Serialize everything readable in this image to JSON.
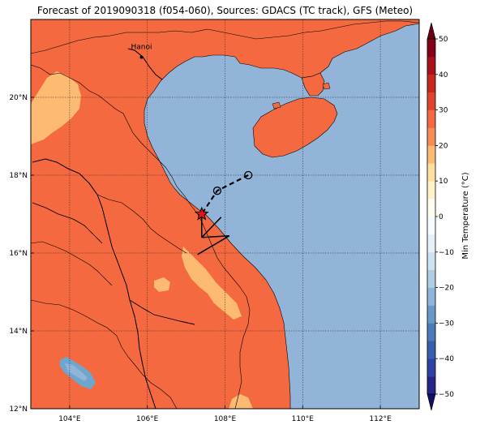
{
  "title": "Forecast of 2019090318 (f054-060), Sources: GDACS (TC track), GFS (Meteo)",
  "map": {
    "lon_range": [
      103,
      113
    ],
    "lat_range": [
      12,
      22
    ],
    "lon_ticks": [
      {
        "value": 104,
        "label": "104°E"
      },
      {
        "value": 106,
        "label": "106°E"
      },
      {
        "value": 108,
        "label": "108°E"
      },
      {
        "value": 110,
        "label": "110°E"
      },
      {
        "value": 112,
        "label": "112°E"
      }
    ],
    "lat_ticks": [
      {
        "value": 12,
        "label": "12°N"
      },
      {
        "value": 14,
        "label": "14°N"
      },
      {
        "value": 16,
        "label": "16°N"
      },
      {
        "value": 18,
        "label": "18°N"
      },
      {
        "value": 20,
        "label": "20°N"
      }
    ],
    "city": {
      "name": "Hanoi",
      "lon": 105.85,
      "lat": 21.03
    },
    "colors": {
      "sea": "#92b4d8",
      "land": "#f4693f",
      "warm_land": "#fdba72",
      "cool_land": "#6ea6d0"
    }
  },
  "track": {
    "forecast_points": [
      {
        "lon": 108.6,
        "lat": 18.0
      },
      {
        "lon": 107.8,
        "lat": 17.6
      }
    ],
    "current_position": {
      "lon": 107.4,
      "lat": 17.0
    },
    "wind_barb": {
      "lon": 107.4,
      "lat": 16.4
    }
  },
  "colorbar": {
    "label": "Min Temperature (°C)",
    "ticks": [
      -50,
      -40,
      -30,
      -20,
      -10,
      0,
      10,
      20,
      30,
      40,
      50
    ],
    "bins": [
      {
        "from": -50,
        "to": -45,
        "color": "#26268a"
      },
      {
        "from": -45,
        "to": -40,
        "color": "#3040a8"
      },
      {
        "from": -40,
        "to": -35,
        "color": "#3a5eae"
      },
      {
        "from": -35,
        "to": -30,
        "color": "#4d7bba"
      },
      {
        "from": -30,
        "to": -25,
        "color": "#6a98c6"
      },
      {
        "from": -25,
        "to": -20,
        "color": "#92b4d8"
      },
      {
        "from": -20,
        "to": -15,
        "color": "#b0cde2"
      },
      {
        "from": -15,
        "to": -10,
        "color": "#cfe2ef"
      },
      {
        "from": -10,
        "to": -5,
        "color": "#e6f1f7"
      },
      {
        "from": -5,
        "to": 0,
        "color": "#f7fbfd"
      },
      {
        "from": 0,
        "to": 5,
        "color": "#fffdf0"
      },
      {
        "from": 5,
        "to": 10,
        "color": "#fff2c8"
      },
      {
        "from": 10,
        "to": 15,
        "color": "#fee0a0"
      },
      {
        "from": 15,
        "to": 20,
        "color": "#fdba72"
      },
      {
        "from": 20,
        "to": 25,
        "color": "#f88c55"
      },
      {
        "from": 25,
        "to": 30,
        "color": "#f4693f"
      },
      {
        "from": 30,
        "to": 35,
        "color": "#e0442c"
      },
      {
        "from": 35,
        "to": 40,
        "color": "#c8261f"
      },
      {
        "from": 40,
        "to": 45,
        "color": "#a8101c"
      },
      {
        "from": 45,
        "to": 50,
        "color": "#850019"
      }
    ],
    "under_color": "#14106a",
    "over_color": "#6a0010"
  }
}
